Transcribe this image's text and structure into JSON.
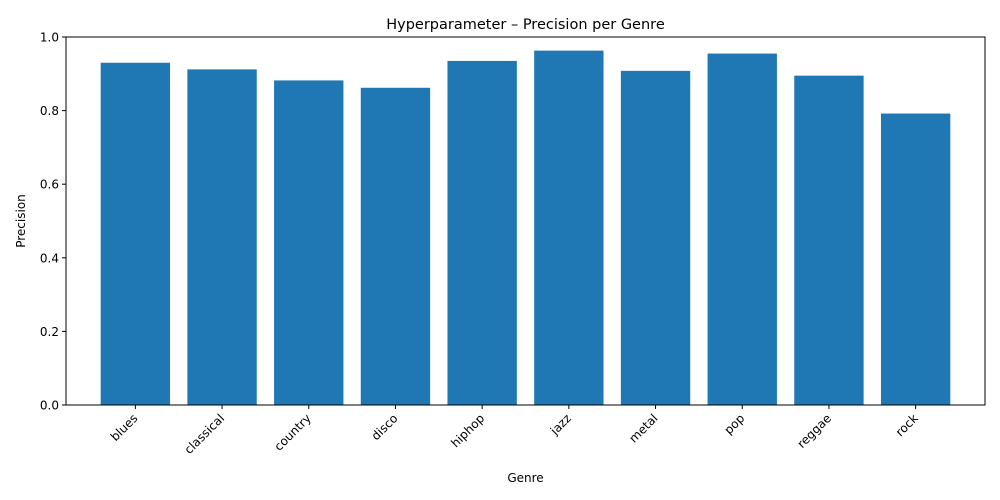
{
  "chart_data": {
    "type": "bar",
    "title": "Hyperparameter – Precision per Genre",
    "xlabel": "Genre",
    "ylabel": "Precision",
    "categories": [
      "blues",
      "classical",
      "country",
      "disco",
      "hiphop",
      "jazz",
      "metal",
      "pop",
      "reggae",
      "rock"
    ],
    "values": [
      0.93,
      0.912,
      0.882,
      0.862,
      0.935,
      0.963,
      0.908,
      0.955,
      0.895,
      0.792
    ],
    "ylim": [
      0,
      1.0
    ],
    "yticks": [
      0.0,
      0.2,
      0.4,
      0.6,
      0.8,
      1.0
    ],
    "ytick_labels": [
      "0.0",
      "0.2",
      "0.4",
      "0.6",
      "0.8",
      "1.0"
    ],
    "grid": false,
    "bar_color": "#1f77b4"
  }
}
